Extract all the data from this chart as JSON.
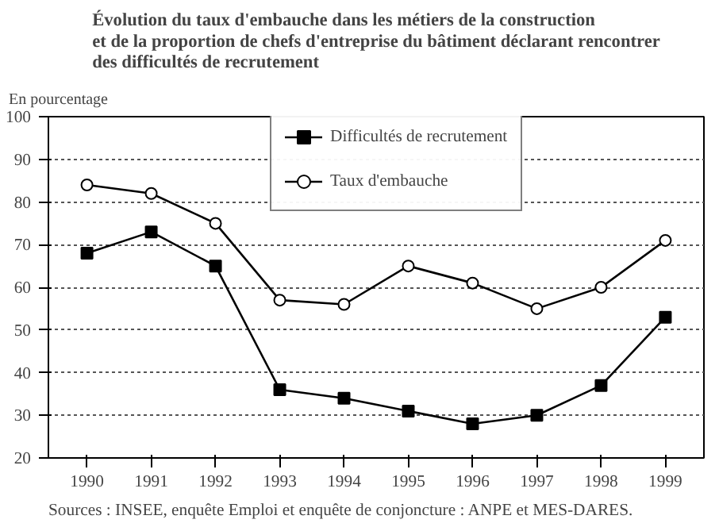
{
  "chart_data": {
    "type": "line",
    "title": "Évolution du taux d'embauche dans les métiers de la construction\net de la proportion de chefs d'entreprise du bâtiment déclarant rencontrer\ndes difficultés de recrutement",
    "ylabel": "En pourcentage",
    "categories": [
      "1990",
      "1991",
      "1992",
      "1993",
      "1994",
      "1995",
      "1996",
      "1997",
      "1998",
      "1999"
    ],
    "series": [
      {
        "name": "Difficultés de recrutement",
        "color": "#000000",
        "marker": "square",
        "values": [
          68,
          73,
          65,
          36,
          34,
          31,
          28,
          30,
          37,
          53
        ]
      },
      {
        "name": "Taux d'embauche",
        "color": "#000000",
        "marker": "circle_open",
        "values": [
          84,
          82,
          75,
          57,
          56,
          65,
          61,
          55,
          60,
          71
        ]
      }
    ],
    "ylim": [
      20,
      100
    ],
    "yticks": [
      20,
      30,
      40,
      50,
      60,
      70,
      80,
      90,
      100
    ],
    "grid": "y",
    "legend": "top",
    "line_style": "solid",
    "annotations": [
      "Sources : INSEE, enquête Emploi et enquête de conjoncture : ANPE et MES-DARES."
    ]
  }
}
